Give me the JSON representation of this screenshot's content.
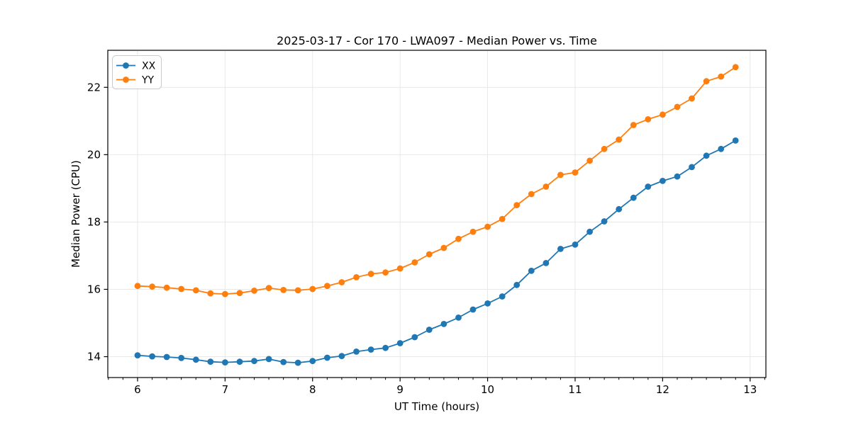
{
  "chart_data": {
    "type": "line",
    "title": "2025-03-17 - Cor 170 - LWA097 - Median Power vs. Time",
    "xlabel": "UT Time (hours)",
    "ylabel": "Median Power (CPU)",
    "xlim": [
      5.66,
      13.18
    ],
    "ylim": [
      13.38,
      23.1
    ],
    "xticks": [
      6,
      7,
      8,
      9,
      10,
      11,
      12,
      13
    ],
    "yticks": [
      14,
      16,
      18,
      20,
      22
    ],
    "x_minor_tick_step": 0.16667,
    "grid": true,
    "grid_color": "#e6e6e6",
    "legend_position": "upper-left",
    "x": [
      6.0,
      6.167,
      6.333,
      6.5,
      6.667,
      6.833,
      7.0,
      7.167,
      7.333,
      7.5,
      7.667,
      7.833,
      8.0,
      8.167,
      8.333,
      8.5,
      8.667,
      8.833,
      9.0,
      9.167,
      9.333,
      9.5,
      9.667,
      9.833,
      10.0,
      10.167,
      10.333,
      10.5,
      10.667,
      10.833,
      11.0,
      11.167,
      11.333,
      11.5,
      11.667,
      11.833,
      12.0,
      12.167,
      12.333,
      12.5,
      12.667,
      12.833
    ],
    "series": [
      {
        "name": "XX",
        "color": "#1f77b4",
        "values": [
          14.04,
          14.01,
          13.99,
          13.96,
          13.91,
          13.85,
          13.83,
          13.85,
          13.87,
          13.93,
          13.84,
          13.82,
          13.87,
          13.97,
          14.02,
          14.15,
          14.21,
          14.26,
          14.4,
          14.58,
          14.8,
          14.97,
          15.16,
          15.4,
          15.58,
          15.79,
          16.13,
          16.55,
          16.78,
          17.2,
          17.33,
          17.71,
          18.02,
          18.38,
          18.72,
          19.05,
          19.22,
          19.35,
          19.63,
          19.97,
          20.17,
          20.42
        ]
      },
      {
        "name": "YY",
        "color": "#ff7f0e",
        "values": [
          16.1,
          16.08,
          16.05,
          16.01,
          15.97,
          15.88,
          15.86,
          15.89,
          15.96,
          16.04,
          15.98,
          15.97,
          16.01,
          16.1,
          16.21,
          16.36,
          16.46,
          16.5,
          16.62,
          16.8,
          17.04,
          17.23,
          17.5,
          17.71,
          17.86,
          18.09,
          18.5,
          18.83,
          19.05,
          19.4,
          19.47,
          19.82,
          20.17,
          20.45,
          20.88,
          21.05,
          21.19,
          21.42,
          21.67,
          22.18,
          22.32,
          22.6
        ]
      }
    ]
  }
}
